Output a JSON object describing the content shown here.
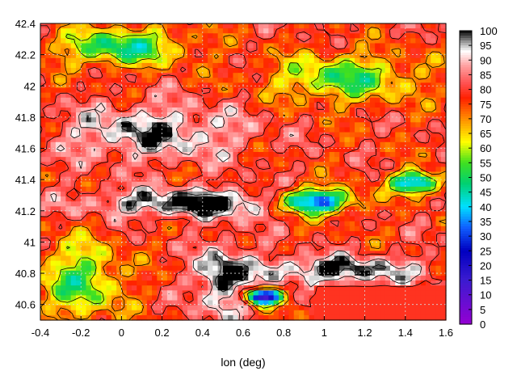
{
  "chart_data": {
    "type": "heatmap",
    "title": "",
    "xlabel": "lon (deg)",
    "ylabel": "",
    "xlim": [
      -0.4,
      1.6
    ],
    "ylim": [
      40.5,
      42.4
    ],
    "x_ticks": [
      "-0.4",
      "-0.2",
      "0",
      "0.2",
      "0.4",
      "0.6",
      "0.8",
      "1",
      "1.2",
      "1.4",
      "1.6"
    ],
    "y_ticks": [
      "40.6",
      "40.8",
      "41",
      "41.2",
      "41.4",
      "41.6",
      "41.8",
      "42",
      "42.2",
      "42.4"
    ],
    "colorbar": {
      "min": 0,
      "max": 100,
      "ticks": [
        "0",
        "5",
        "10",
        "15",
        "20",
        "25",
        "30",
        "35",
        "40",
        "45",
        "50",
        "55",
        "60",
        "65",
        "70",
        "75",
        "80",
        "85",
        "90",
        "95",
        "100"
      ]
    },
    "grid": true,
    "has_contours": true,
    "palette": [
      {
        "v": 0,
        "color": "#9400d3"
      },
      {
        "v": 15,
        "color": "#3b1bd0"
      },
      {
        "v": 25,
        "color": "#0000c0"
      },
      {
        "v": 33,
        "color": "#1060ff"
      },
      {
        "v": 40,
        "color": "#00e0ff"
      },
      {
        "v": 48,
        "color": "#00d070"
      },
      {
        "v": 55,
        "color": "#40e020"
      },
      {
        "v": 62,
        "color": "#ffff00"
      },
      {
        "v": 70,
        "color": "#ff8c00"
      },
      {
        "v": 77,
        "color": "#ff2000"
      },
      {
        "v": 82,
        "color": "#ff5050"
      },
      {
        "v": 88,
        "color": "#ffa0a0"
      },
      {
        "v": 93,
        "color": "#ffffff"
      },
      {
        "v": 96,
        "color": "#a0a0a0"
      },
      {
        "v": 100,
        "color": "#000000"
      }
    ],
    "fields": {
      "base": 78,
      "features": [
        {
          "x": 0.4,
          "y": 41.25,
          "sx": 0.55,
          "sy": 0.09,
          "a": 25
        },
        {
          "x": 0.15,
          "y": 41.7,
          "sx": 0.45,
          "sy": 0.18,
          "a": 18
        },
        {
          "x": 0.5,
          "y": 40.75,
          "sx": 0.12,
          "sy": 0.25,
          "a": 22
        },
        {
          "x": 1.05,
          "y": 40.82,
          "sx": 0.45,
          "sy": 0.09,
          "a": 22
        },
        {
          "x": 0.95,
          "y": 41.26,
          "sx": 0.2,
          "sy": 0.08,
          "a": -55
        },
        {
          "x": 1.45,
          "y": 41.38,
          "sx": 0.12,
          "sy": 0.07,
          "a": -45
        },
        {
          "x": -0.2,
          "y": 40.75,
          "sx": 0.2,
          "sy": 0.25,
          "a": -25
        },
        {
          "x": 0.0,
          "y": 42.25,
          "sx": 0.3,
          "sy": 0.12,
          "a": -30
        },
        {
          "x": 1.1,
          "y": 42.05,
          "sx": 0.35,
          "sy": 0.15,
          "a": -25
        },
        {
          "x": 0.7,
          "y": 40.65,
          "sx": 0.08,
          "sy": 0.05,
          "a": -70
        }
      ],
      "corner_block": {
        "x_from": 0.95,
        "y_to": 40.72,
        "value": 79
      }
    }
  }
}
